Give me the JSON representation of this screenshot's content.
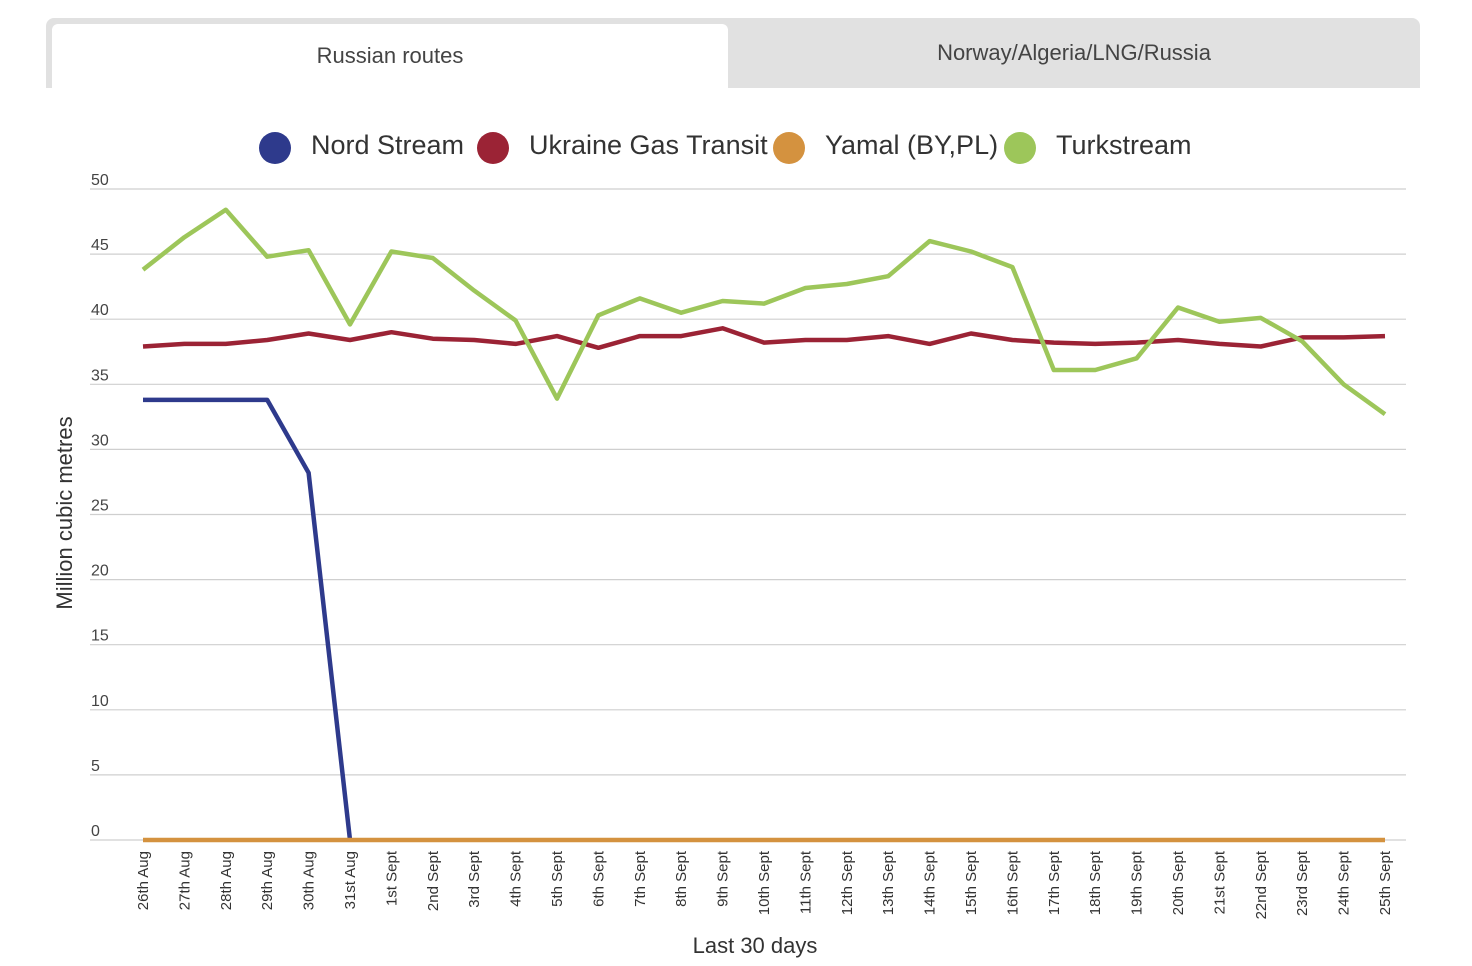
{
  "tabs": [
    {
      "label": "Russian routes",
      "active": true
    },
    {
      "label": "Norway/Algeria/LNG/Russia",
      "active": false
    }
  ],
  "chart_data": {
    "type": "line",
    "xlabel": "Last 30 days",
    "ylabel": "Million cubic metres",
    "ylim": [
      0,
      50
    ],
    "yticks": [
      0,
      5,
      10,
      15,
      20,
      25,
      30,
      35,
      40,
      45,
      50
    ],
    "grid": true,
    "legend_position": "top-center",
    "categories": [
      "26th Aug",
      "27th Aug",
      "28th Aug",
      "29th Aug",
      "30th Aug",
      "31st Aug",
      "1st Sept",
      "2nd Sept",
      "3rd Sept",
      "4th Sept",
      "5th Sept",
      "6th Sept",
      "7th Sept",
      "8th Sept",
      "9th Sept",
      "10th Sept",
      "11th Sept",
      "12th Sept",
      "13th Sept",
      "14th Sept",
      "15th Sept",
      "16th Sept",
      "17th Sept",
      "18th Sept",
      "19th Sept",
      "20th Sept",
      "21st Sept",
      "22nd Sept",
      "23rd Sept",
      "24th Sept",
      "25th Sept"
    ],
    "series": [
      {
        "name": "Nord Stream",
        "color": "#2e3a8c",
        "values": [
          33.8,
          33.8,
          33.8,
          33.8,
          28.2,
          0,
          null,
          null,
          null,
          null,
          null,
          null,
          null,
          null,
          null,
          null,
          null,
          null,
          null,
          null,
          null,
          null,
          null,
          null,
          null,
          null,
          null,
          null,
          null,
          null,
          null
        ]
      },
      {
        "name": "Ukraine Gas Transit",
        "color": "#9b2335",
        "values": [
          37.9,
          38.1,
          38.1,
          38.4,
          38.9,
          38.4,
          39.0,
          38.5,
          38.4,
          38.1,
          38.7,
          37.8,
          38.7,
          38.7,
          39.3,
          38.2,
          38.4,
          38.4,
          38.7,
          38.1,
          38.9,
          38.4,
          38.2,
          38.1,
          38.2,
          38.4,
          38.1,
          37.9,
          38.6,
          38.6,
          38.7
        ]
      },
      {
        "name": "Yamal (BY,PL)",
        "color": "#d4923f",
        "values": [
          0,
          0,
          0,
          0,
          0,
          0,
          0,
          0,
          0,
          0,
          0,
          0,
          0,
          0,
          0,
          0,
          0,
          0,
          0,
          0,
          0,
          0,
          0,
          0,
          0,
          0,
          0,
          0,
          0,
          0,
          0
        ]
      },
      {
        "name": "Turkstream",
        "color": "#9dc65a",
        "values": [
          43.8,
          46.3,
          48.4,
          44.8,
          45.3,
          39.6,
          45.2,
          44.7,
          42.2,
          39.9,
          33.9,
          40.3,
          41.6,
          40.5,
          41.4,
          41.2,
          42.4,
          42.7,
          43.3,
          46.0,
          45.2,
          44.0,
          36.1,
          36.1,
          37.0,
          40.9,
          39.8,
          40.1,
          38.3,
          35.0,
          32.7
        ]
      }
    ]
  }
}
